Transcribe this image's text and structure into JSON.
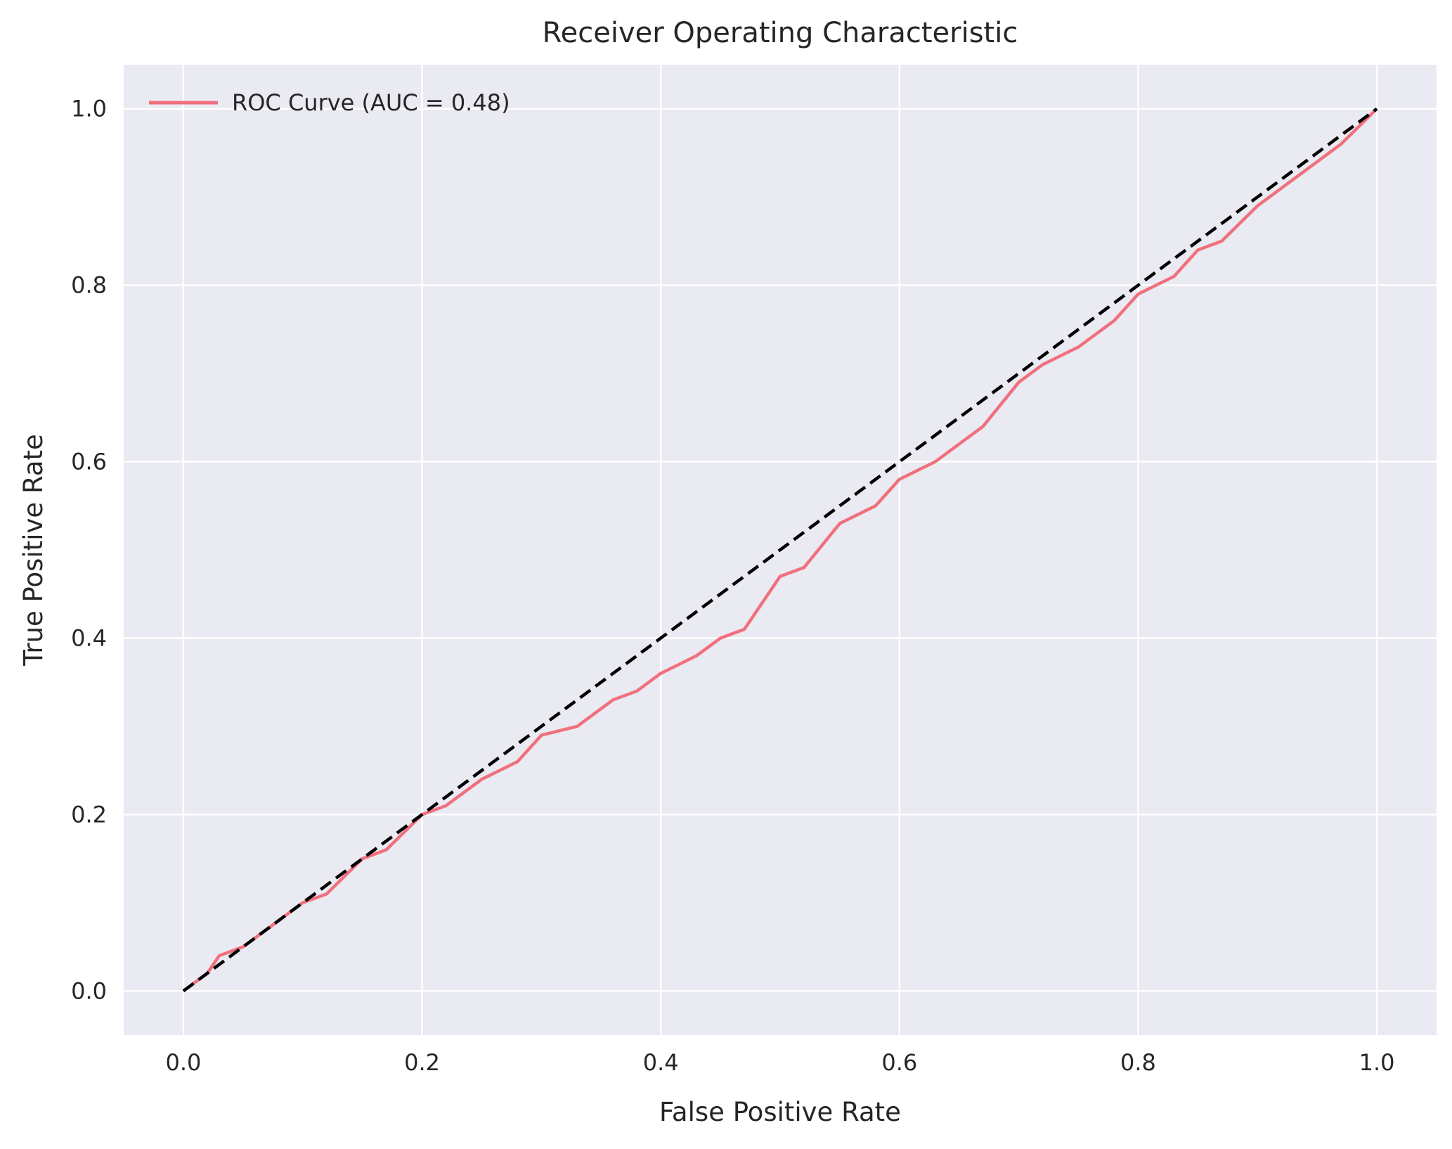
{
  "chart_data": {
    "type": "line",
    "title": "Receiver Operating Characteristic",
    "xlabel": "False Positive Rate",
    "ylabel": "True Positive Rate",
    "xlim": [
      -0.05,
      1.05
    ],
    "ylim": [
      -0.05,
      1.05
    ],
    "xticks": [
      0.0,
      0.2,
      0.4,
      0.6,
      0.8,
      1.0
    ],
    "yticks": [
      0.0,
      0.2,
      0.4,
      0.6,
      0.8,
      1.0
    ],
    "xtick_labels": [
      "0.0",
      "0.2",
      "0.4",
      "0.6",
      "0.8",
      "1.0"
    ],
    "ytick_labels": [
      "0.0",
      "0.2",
      "0.4",
      "0.6",
      "0.8",
      "1.0"
    ],
    "grid": true,
    "legend_position": "top-left",
    "series": [
      {
        "name": "ROC Curve (AUC = 0.48)",
        "color": "#f0707d",
        "style": "solid",
        "x": [
          0.0,
          0.02,
          0.03,
          0.05,
          0.07,
          0.1,
          0.12,
          0.15,
          0.17,
          0.2,
          0.22,
          0.25,
          0.28,
          0.3,
          0.33,
          0.36,
          0.38,
          0.4,
          0.43,
          0.45,
          0.47,
          0.5,
          0.52,
          0.55,
          0.58,
          0.6,
          0.63,
          0.65,
          0.67,
          0.7,
          0.72,
          0.75,
          0.78,
          0.8,
          0.83,
          0.85,
          0.87,
          0.9,
          0.93,
          0.95,
          0.97,
          1.0
        ],
        "y": [
          0.0,
          0.02,
          0.04,
          0.05,
          0.07,
          0.1,
          0.11,
          0.15,
          0.16,
          0.2,
          0.21,
          0.24,
          0.26,
          0.29,
          0.3,
          0.33,
          0.34,
          0.36,
          0.38,
          0.4,
          0.41,
          0.47,
          0.48,
          0.53,
          0.55,
          0.58,
          0.6,
          0.62,
          0.64,
          0.69,
          0.71,
          0.73,
          0.76,
          0.79,
          0.81,
          0.84,
          0.85,
          0.89,
          0.92,
          0.94,
          0.96,
          1.0
        ]
      },
      {
        "color": "#000000",
        "style": "dashed",
        "x": [
          0.0,
          1.0
        ],
        "y": [
          0.0,
          1.0
        ]
      }
    ]
  },
  "colors": {
    "plot_background": "#eaeaf2",
    "grid": "#ffffff",
    "text": "#262626"
  }
}
